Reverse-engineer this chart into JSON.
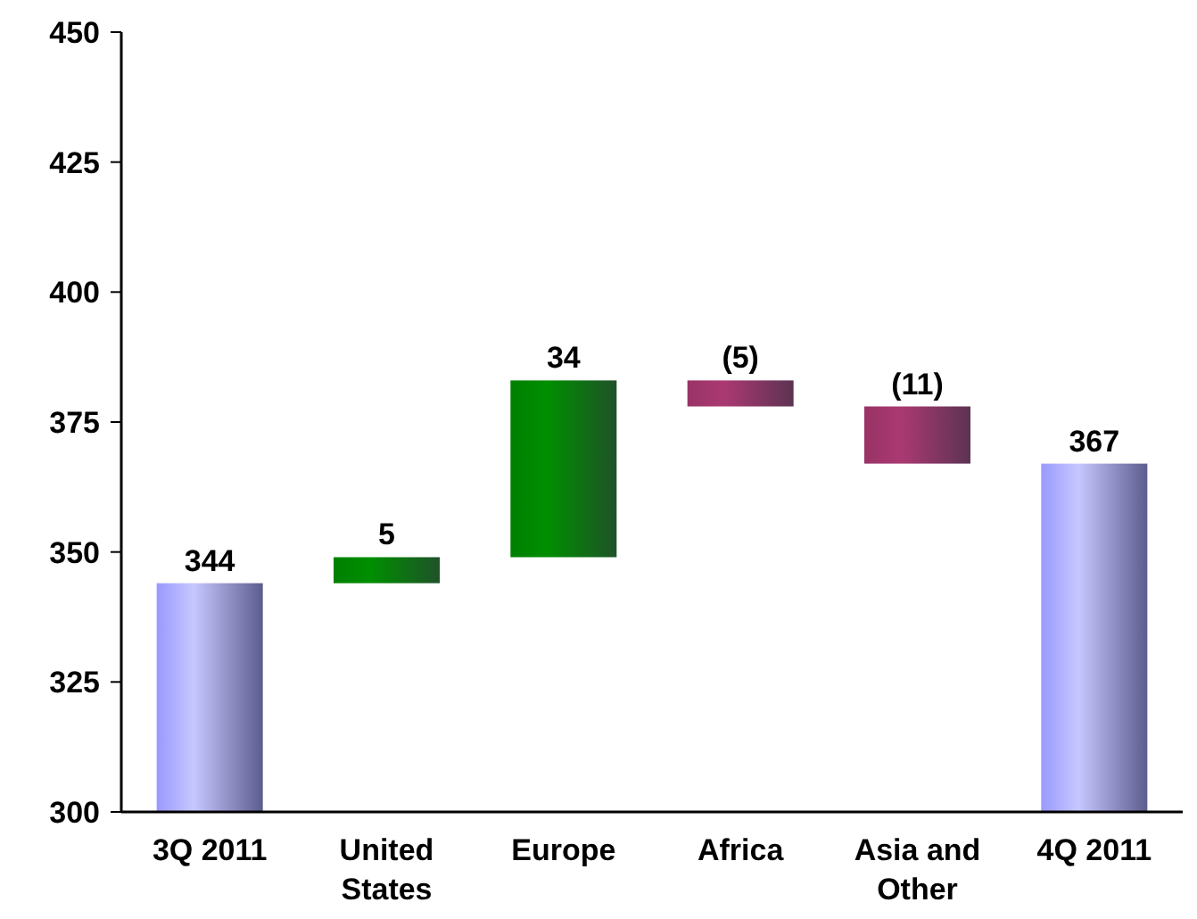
{
  "chart_data": {
    "type": "bar",
    "categories": [
      "3Q 2011",
      "United States",
      "Europe",
      "Africa",
      "Asia and Other",
      "4Q 2011"
    ],
    "values": [
      344,
      5,
      34,
      -5,
      -11,
      367
    ],
    "base": [
      null,
      344,
      349,
      383,
      378,
      null
    ],
    "colors": [
      "#9999ff",
      "#008000",
      "#008000",
      "#993366",
      "#993366",
      "#9999ff"
    ],
    "value_labels": [
      "344",
      "5",
      "34",
      "(5)",
      "(11)",
      "367"
    ],
    "ylim": [
      300,
      450
    ],
    "yticks": [
      300,
      325,
      350,
      375,
      400,
      425,
      450
    ],
    "grid": false
  }
}
